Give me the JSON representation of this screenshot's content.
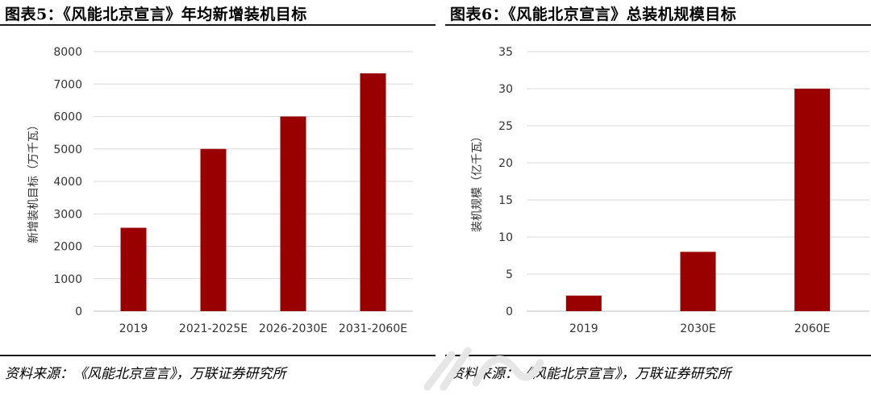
{
  "panels": [
    {
      "title": "图表5：《风能北京宣言》年均新增装机目标",
      "source": "资料来源：《风能北京宣言》，万联证券研究所",
      "chart_data": {
        "type": "bar",
        "categories": [
          "2019",
          "2021-2025E",
          "2026-2030E",
          "2031-2060E"
        ],
        "values": [
          2570,
          5000,
          6000,
          7330
        ],
        "ylabel": "新增装机目标（万千瓦）",
        "ylim": [
          0,
          8000
        ],
        "yticks": [
          0,
          1000,
          2000,
          3000,
          4000,
          5000,
          6000,
          7000,
          8000
        ],
        "bar_color": "#990000",
        "grid": true,
        "legend": "none"
      }
    },
    {
      "title": "图表6：《风能北京宣言》总装机规模目标",
      "source": "资料来源：《风能北京宣言》，万联证券研究所",
      "chart_data": {
        "type": "bar",
        "categories": [
          "2019",
          "2030E",
          "2060E"
        ],
        "values": [
          2.1,
          8,
          30
        ],
        "ylabel": "装机规模（亿千瓦）",
        "ylim": [
          0,
          35
        ],
        "yticks": [
          0,
          5,
          10,
          15,
          20,
          25,
          30,
          35
        ],
        "bar_color": "#990000",
        "grid": true,
        "legend": "none"
      }
    }
  ]
}
